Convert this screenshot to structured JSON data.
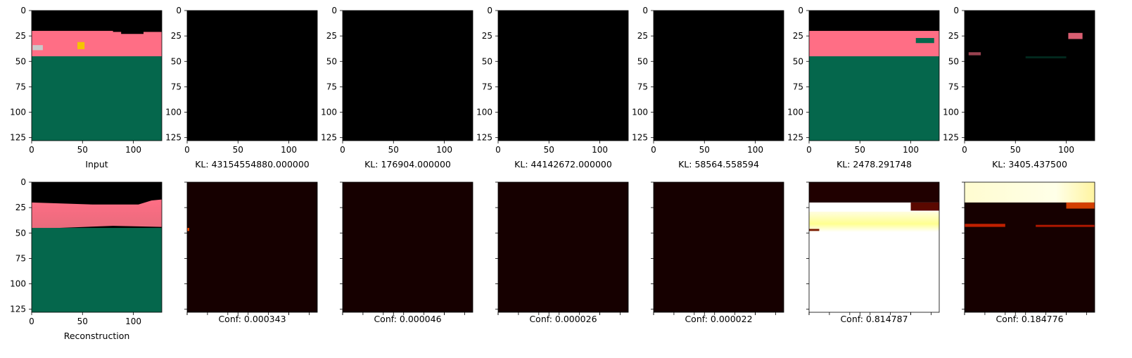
{
  "figure": {
    "axis_ticks": [
      "0",
      "50",
      "100"
    ],
    "y_ticks": [
      "0",
      "25",
      "50",
      "75",
      "100",
      "125"
    ]
  },
  "chart_data": [
    {
      "type": "image",
      "panel": "input",
      "caption": "Input",
      "xlim": [
        0,
        127
      ],
      "ylim": [
        127,
        0
      ]
    },
    {
      "type": "image",
      "caption": "KL: 43154554880.000000",
      "kl": 43154554880.0
    },
    {
      "type": "image",
      "caption": "KL: 176904.000000",
      "kl": 176904.0
    },
    {
      "type": "image",
      "caption": "KL: 44142672.000000",
      "kl": 44142672.0
    },
    {
      "type": "image",
      "caption": "KL: 58564.558594",
      "kl": 58564.558594
    },
    {
      "type": "image",
      "caption": "KL: 2478.291748",
      "kl": 2478.291748
    },
    {
      "type": "image",
      "caption": "KL: 3405.437500",
      "kl": 3405.4375
    },
    {
      "type": "image",
      "panel": "reconstruction",
      "caption": "Reconstruction",
      "xlim": [
        0,
        127
      ],
      "ylim": [
        127,
        0
      ]
    },
    {
      "type": "heatmap",
      "caption": "Conf: 0.000343",
      "conf": 0.000343
    },
    {
      "type": "heatmap",
      "caption": "Conf: 0.000046",
      "conf": 4.6e-05
    },
    {
      "type": "heatmap",
      "caption": "Conf: 0.000026",
      "conf": 2.6e-05
    },
    {
      "type": "heatmap",
      "caption": "Conf: 0.000022",
      "conf": 2.2e-05
    },
    {
      "type": "heatmap",
      "caption": "Conf: 0.814787",
      "conf": 0.814787
    },
    {
      "type": "heatmap",
      "caption": "Conf: 0.184776",
      "conf": 0.184776
    }
  ],
  "colors": {
    "sky": "#000000",
    "band": "#ff6e85",
    "ground": "#05674c",
    "heat_dark": "#160000",
    "heat_hot": "#ffffe8"
  }
}
